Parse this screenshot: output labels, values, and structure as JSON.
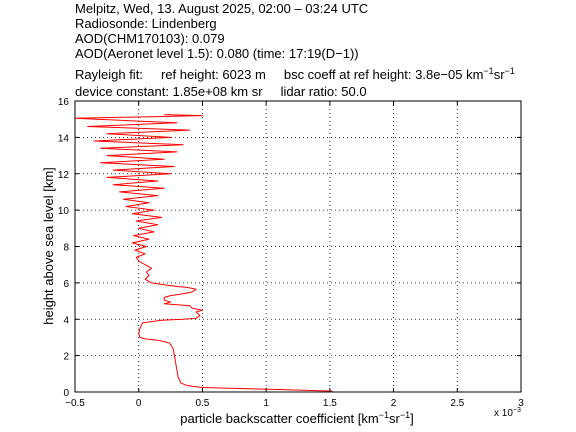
{
  "header": {
    "line1": "Melpitz, Wed, 13. August 2025, 02:00 – 03:24 UTC",
    "line2": "Radiosonde: Lindenberg",
    "line3": "AOD(CHM170103): 0.079",
    "line4": "AOD(Aeronet level 1.5): 0.080   (time: 17:19(D−1))",
    "rayleigh_label": "Rayleigh fit:",
    "ref_height": "ref height: 6023 m",
    "bsc_coeff_pre": "bsc coeff at ref height: 3.8e−05 km",
    "bsc_exp1": "−1",
    "bsc_mid": "sr",
    "bsc_exp2": "−1",
    "device_constant": "device constant: 1.85e+08 km sr",
    "lidar_ratio": "lidar ratio: 50.0"
  },
  "chart_data": {
    "type": "line",
    "xlabel_pre": "particle backscatter coefficient [km",
    "xlabel_exp1": "−1",
    "xlabel_mid": "sr",
    "xlabel_exp2": "−1",
    "xlabel_post": "]",
    "ylabel": "height above sea level [km]",
    "x_multiplier_label": "x 10",
    "x_multiplier_exp": "−3",
    "xlim": [
      -0.5,
      3
    ],
    "ylim": [
      0,
      16
    ],
    "xticks": [
      -0.5,
      0,
      0.5,
      1,
      1.5,
      2,
      2.5,
      3
    ],
    "xtick_labels": [
      "−0.5",
      "0",
      "0.5",
      "1",
      "1.5",
      "2",
      "2.5",
      "3"
    ],
    "yticks": [
      0,
      2,
      4,
      6,
      8,
      10,
      12,
      14,
      16
    ],
    "ytick_labels": [
      "0",
      "2",
      "4",
      "6",
      "8",
      "10",
      "12",
      "14",
      "16"
    ],
    "grid": true,
    "series": [
      {
        "color": "#ff0000",
        "points": [
          [
            1.52,
            0.05
          ],
          [
            1.1,
            0.14
          ],
          [
            0.75,
            0.2
          ],
          [
            0.5,
            0.25
          ],
          [
            0.38,
            0.35
          ],
          [
            0.33,
            0.5
          ],
          [
            0.31,
            0.8
          ],
          [
            0.3,
            1.2
          ],
          [
            0.29,
            1.6
          ],
          [
            0.28,
            2.0
          ],
          [
            0.27,
            2.4
          ],
          [
            0.24,
            2.7
          ],
          [
            0.15,
            2.85
          ],
          [
            0.05,
            2.92
          ],
          [
            0.01,
            3.0
          ],
          [
            0.0,
            3.2
          ],
          [
            0.01,
            3.5
          ],
          [
            0.03,
            3.8
          ],
          [
            0.18,
            3.95
          ],
          [
            0.35,
            4.0
          ],
          [
            0.45,
            4.05
          ],
          [
            0.48,
            4.2
          ],
          [
            0.45,
            4.4
          ],
          [
            0.5,
            4.5
          ],
          [
            0.42,
            4.6
          ],
          [
            0.4,
            4.75
          ],
          [
            0.3,
            4.8
          ],
          [
            0.2,
            4.85
          ],
          [
            0.25,
            4.95
          ],
          [
            0.2,
            5.05
          ],
          [
            0.2,
            5.2
          ],
          [
            0.25,
            5.3
          ],
          [
            0.35,
            5.4
          ],
          [
            0.42,
            5.5
          ],
          [
            0.45,
            5.65
          ],
          [
            0.38,
            5.75
          ],
          [
            0.3,
            5.8
          ],
          [
            0.2,
            5.9
          ],
          [
            0.1,
            6.0
          ],
          [
            0.05,
            6.2
          ],
          [
            0.08,
            6.4
          ],
          [
            0.06,
            6.6
          ],
          [
            0.1,
            6.8
          ],
          [
            0.05,
            7.0
          ],
          [
            0.0,
            7.2
          ],
          [
            -0.02,
            7.4
          ],
          [
            0.05,
            7.6
          ],
          [
            -0.03,
            7.8
          ],
          [
            0.06,
            8.0
          ],
          [
            -0.05,
            8.2
          ],
          [
            0.08,
            8.4
          ],
          [
            -0.04,
            8.6
          ],
          [
            0.12,
            8.8
          ],
          [
            0.0,
            9.0
          ],
          [
            0.15,
            9.2
          ],
          [
            -0.02,
            9.4
          ],
          [
            0.18,
            9.6
          ],
          [
            -0.05,
            9.8
          ],
          [
            0.12,
            10.0
          ],
          [
            -0.1,
            10.2
          ],
          [
            0.08,
            10.4
          ],
          [
            -0.12,
            10.6
          ],
          [
            0.15,
            10.8
          ],
          [
            -0.15,
            11.0
          ],
          [
            0.2,
            11.2
          ],
          [
            -0.2,
            11.4
          ],
          [
            0.15,
            11.6
          ],
          [
            -0.25,
            11.8
          ],
          [
            0.25,
            12.0
          ],
          [
            -0.2,
            12.2
          ],
          [
            0.28,
            12.4
          ],
          [
            -0.3,
            12.6
          ],
          [
            0.2,
            12.8
          ],
          [
            -0.25,
            13.0
          ],
          [
            0.3,
            13.2
          ],
          [
            -0.3,
            13.4
          ],
          [
            0.35,
            13.6
          ],
          [
            -0.35,
            13.8
          ],
          [
            0.25,
            14.0
          ],
          [
            -0.25,
            14.2
          ],
          [
            0.4,
            14.4
          ],
          [
            -0.4,
            14.6
          ],
          [
            0.3,
            14.8
          ],
          [
            -0.5,
            15.05
          ],
          [
            0.5,
            15.2
          ],
          [
            0.2,
            15.25
          ]
        ]
      }
    ]
  }
}
